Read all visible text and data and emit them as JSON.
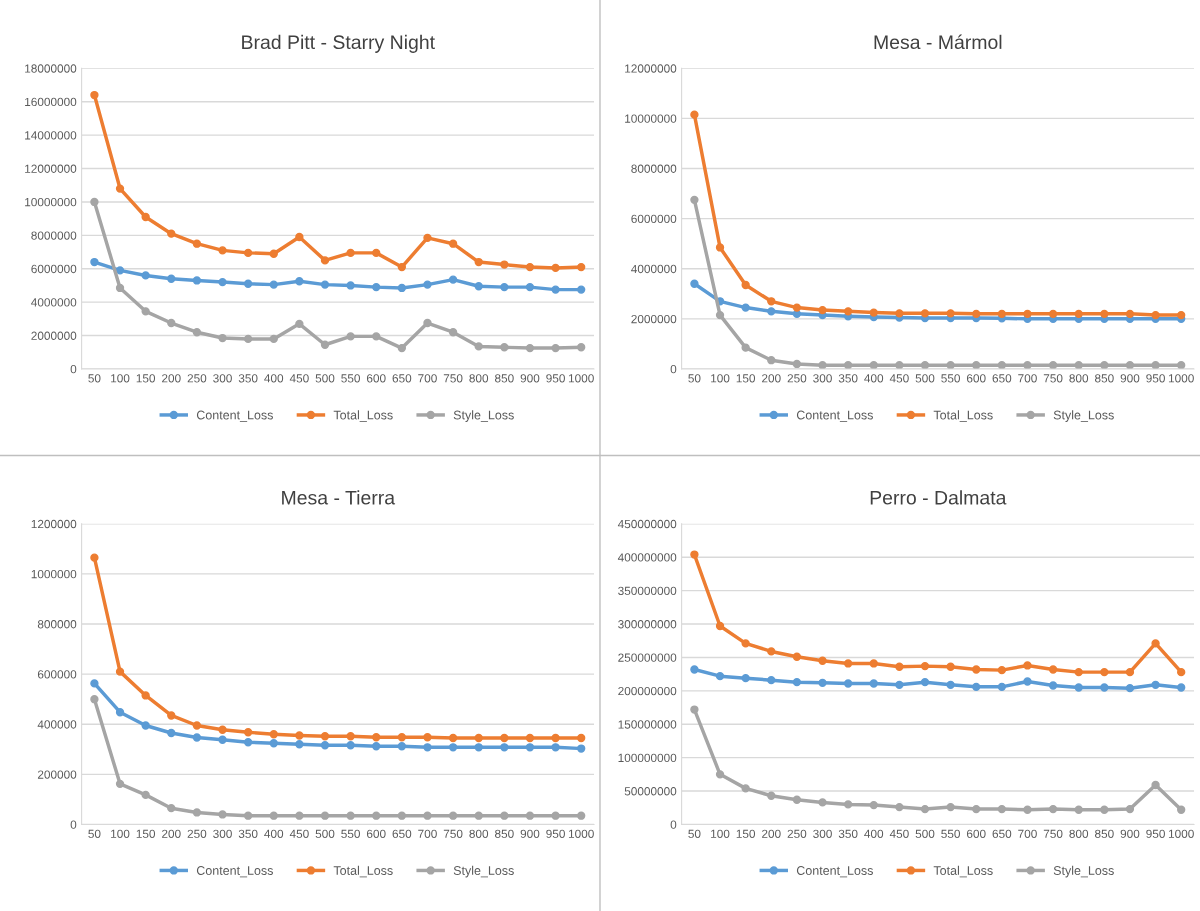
{
  "chart_data": [
    {
      "type": "line",
      "title": "Brad Pitt - Starry Night",
      "categories": [
        "50",
        "100",
        "150",
        "200",
        "250",
        "300",
        "350",
        "400",
        "450",
        "500",
        "550",
        "600",
        "650",
        "700",
        "750",
        "800",
        "850",
        "900",
        "950",
        "1000"
      ],
      "ylim": [
        0,
        18000000
      ],
      "yticks": [
        0,
        2000000,
        4000000,
        6000000,
        8000000,
        10000000,
        12000000,
        14000000,
        16000000,
        18000000
      ],
      "grid": "y",
      "legend": "bottom",
      "marker": "circle",
      "line_style": "solid",
      "series": [
        {
          "name": "Content_Loss",
          "color": "#5b9bd5",
          "values": [
            6400000,
            5900000,
            5600000,
            5400000,
            5300000,
            5200000,
            5100000,
            5050000,
            5250000,
            5050000,
            5000000,
            4900000,
            4850000,
            5050000,
            5350000,
            4950000,
            4900000,
            4900000,
            4750000,
            4750000
          ]
        },
        {
          "name": "Total_Loss",
          "color": "#ed7d31",
          "values": [
            16400000,
            10800000,
            9100000,
            8100000,
            7500000,
            7100000,
            6950000,
            6900000,
            7900000,
            6500000,
            6950000,
            6950000,
            6100000,
            7850000,
            7500000,
            6400000,
            6250000,
            6100000,
            6050000,
            6100000
          ]
        },
        {
          "name": "Style_Loss",
          "color": "#a5a5a5",
          "values": [
            10000000,
            4850000,
            3450000,
            2750000,
            2200000,
            1850000,
            1800000,
            1800000,
            2700000,
            1450000,
            1950000,
            1950000,
            1250000,
            2750000,
            2200000,
            1350000,
            1300000,
            1250000,
            1250000,
            1300000
          ]
        }
      ]
    },
    {
      "type": "line",
      "title": "Mesa - Mármol",
      "categories": [
        "50",
        "100",
        "150",
        "200",
        "250",
        "300",
        "350",
        "400",
        "450",
        "500",
        "550",
        "600",
        "650",
        "700",
        "750",
        "800",
        "850",
        "900",
        "950",
        "1000"
      ],
      "ylim": [
        0,
        12000000
      ],
      "yticks": [
        0,
        2000000,
        4000000,
        6000000,
        8000000,
        10000000,
        12000000
      ],
      "grid": "y",
      "legend": "bottom",
      "marker": "circle",
      "line_style": "solid",
      "series": [
        {
          "name": "Content_Loss",
          "color": "#5b9bd5",
          "values": [
            3400000,
            2700000,
            2450000,
            2300000,
            2200000,
            2150000,
            2100000,
            2070000,
            2050000,
            2030000,
            2030000,
            2030000,
            2020000,
            2000000,
            2000000,
            2000000,
            2000000,
            2000000,
            2000000,
            2000000
          ]
        },
        {
          "name": "Total_Loss",
          "color": "#ed7d31",
          "values": [
            10150000,
            4850000,
            3350000,
            2700000,
            2450000,
            2350000,
            2300000,
            2250000,
            2220000,
            2220000,
            2220000,
            2200000,
            2200000,
            2200000,
            2200000,
            2200000,
            2200000,
            2200000,
            2150000,
            2150000
          ]
        },
        {
          "name": "Style_Loss",
          "color": "#a5a5a5",
          "values": [
            6750000,
            2150000,
            850000,
            350000,
            200000,
            150000,
            150000,
            150000,
            150000,
            150000,
            150000,
            150000,
            150000,
            150000,
            150000,
            150000,
            150000,
            150000,
            150000,
            150000
          ]
        }
      ]
    },
    {
      "type": "line",
      "title": "Mesa - Tierra",
      "categories": [
        "50",
        "100",
        "150",
        "200",
        "250",
        "300",
        "350",
        "400",
        "450",
        "500",
        "550",
        "600",
        "650",
        "700",
        "750",
        "800",
        "850",
        "900",
        "950",
        "1000"
      ],
      "ylim": [
        0,
        1200000
      ],
      "yticks": [
        0,
        200000,
        400000,
        600000,
        800000,
        1000000,
        1200000
      ],
      "grid": "y",
      "legend": "bottom",
      "marker": "circle",
      "line_style": "solid",
      "series": [
        {
          "name": "Content_Loss",
          "color": "#5b9bd5",
          "values": [
            563000,
            448000,
            395000,
            365000,
            347000,
            338000,
            328000,
            324000,
            320000,
            316000,
            316000,
            312000,
            312000,
            308000,
            308000,
            308000,
            308000,
            308000,
            308000,
            303000
          ]
        },
        {
          "name": "Total_Loss",
          "color": "#ed7d31",
          "values": [
            1065000,
            610000,
            515000,
            435000,
            395000,
            378000,
            368000,
            360000,
            355000,
            352000,
            352000,
            348000,
            348000,
            348000,
            345000,
            345000,
            345000,
            345000,
            345000,
            345000
          ]
        },
        {
          "name": "Style_Loss",
          "color": "#a5a5a5",
          "values": [
            500000,
            162000,
            118000,
            65000,
            48000,
            40000,
            35000,
            35000,
            35000,
            35000,
            35000,
            35000,
            35000,
            35000,
            35000,
            35000,
            35000,
            35000,
            35000,
            35000
          ]
        }
      ]
    },
    {
      "type": "line",
      "title": "Perro - Dalmata",
      "categories": [
        "50",
        "100",
        "150",
        "200",
        "250",
        "300",
        "350",
        "400",
        "450",
        "500",
        "550",
        "600",
        "650",
        "700",
        "750",
        "800",
        "850",
        "900",
        "950",
        "1000"
      ],
      "ylim": [
        0,
        450000000
      ],
      "yticks": [
        0,
        50000000,
        100000000,
        150000000,
        200000000,
        250000000,
        300000000,
        350000000,
        400000000,
        450000000
      ],
      "grid": "y",
      "legend": "bottom",
      "marker": "circle",
      "line_style": "solid",
      "series": [
        {
          "name": "Content_Loss",
          "color": "#5b9bd5",
          "values": [
            232000000,
            222000000,
            219000000,
            216000000,
            213000000,
            212000000,
            211000000,
            211000000,
            209000000,
            213000000,
            209000000,
            206000000,
            206000000,
            214000000,
            208000000,
            205000000,
            205000000,
            204000000,
            209000000,
            205000000
          ]
        },
        {
          "name": "Total_Loss",
          "color": "#ed7d31",
          "values": [
            404000000,
            297000000,
            271000000,
            259000000,
            251000000,
            245000000,
            241000000,
            241000000,
            236000000,
            237000000,
            236000000,
            232000000,
            231000000,
            238000000,
            232000000,
            228000000,
            228000000,
            228000000,
            271000000,
            228000000
          ]
        },
        {
          "name": "Style_Loss",
          "color": "#a5a5a5",
          "values": [
            172000000,
            75000000,
            54000000,
            43000000,
            37000000,
            33000000,
            30000000,
            29000000,
            26000000,
            23000000,
            26000000,
            23000000,
            23000000,
            22000000,
            23000000,
            22000000,
            22000000,
            23000000,
            59000000,
            22000000
          ]
        }
      ]
    }
  ]
}
